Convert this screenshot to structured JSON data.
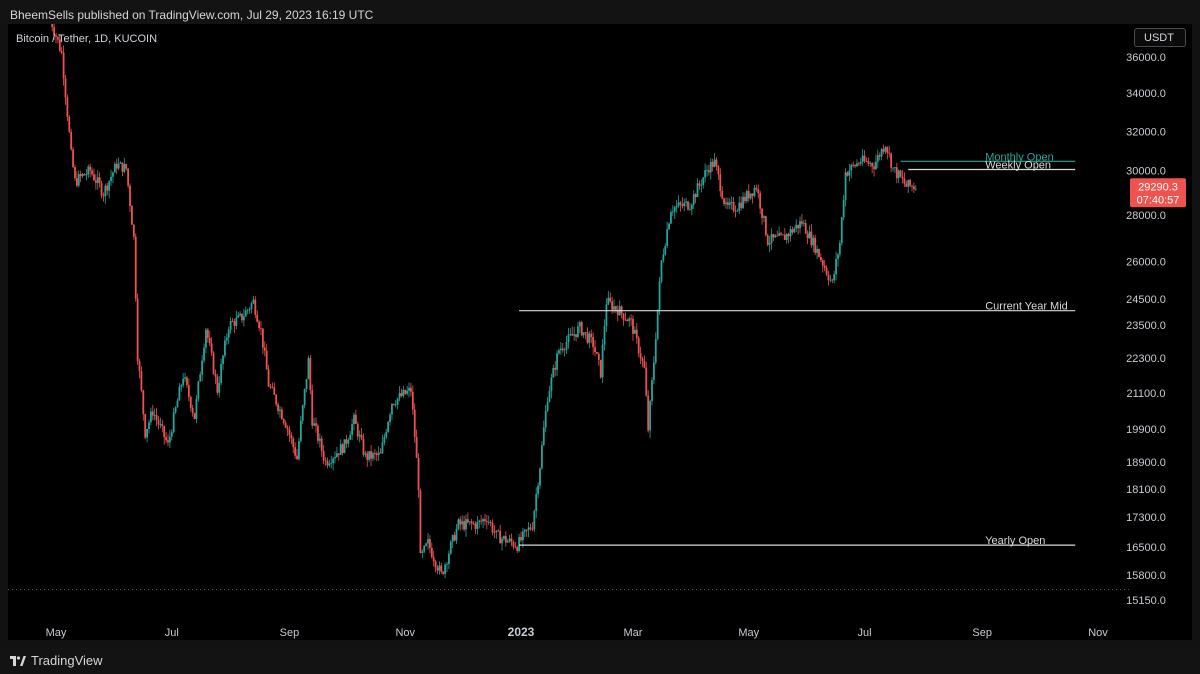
{
  "header": {
    "publisher_line": "BheemSells published on TradingView.com, Jul 29, 2023 16:19 UTC"
  },
  "symbol": {
    "title": "Bitcoin / Tether, 1D, KUCOIN"
  },
  "currency_button": "USDT",
  "footer": {
    "brand": "TradingView"
  },
  "colors": {
    "background": "#000000",
    "up": "#26a69a",
    "down": "#ef5350",
    "level_line": "#d9d9d9",
    "monthly_line": "#26a69a",
    "price_tag": "#ef5350"
  },
  "chart_data": {
    "type": "candlestick",
    "price_scale_ticks": [
      36000,
      34000,
      32000,
      30000,
      28000,
      26000,
      24500,
      23500,
      22300,
      21100,
      19900,
      18900,
      18100,
      17300,
      16500,
      15800,
      15150
    ],
    "price_scale_labels": [
      "36000.0",
      "34000.0",
      "32000.0",
      "30000.0",
      "28000.0",
      "26000.0",
      "24500.0",
      "23500.0",
      "22300.0",
      "21100.0",
      "19900.0",
      "18900.0",
      "18100.0",
      "17300.0",
      "16500.0",
      "15800.0",
      "15150.0"
    ],
    "time_axis": [
      {
        "date": "2022-05-01",
        "label": "May",
        "bold": false
      },
      {
        "date": "2022-07-01",
        "label": "Jul",
        "bold": false
      },
      {
        "date": "2022-09-01",
        "label": "Sep",
        "bold": false
      },
      {
        "date": "2022-11-01",
        "label": "Nov",
        "bold": false
      },
      {
        "date": "2023-01-01",
        "label": "2023",
        "bold": true
      },
      {
        "date": "2023-03-01",
        "label": "Mar",
        "bold": false
      },
      {
        "date": "2023-05-01",
        "label": "May",
        "bold": false
      },
      {
        "date": "2023-07-01",
        "label": "Jul",
        "bold": false
      },
      {
        "date": "2023-09-01",
        "label": "Sep",
        "bold": false
      },
      {
        "date": "2023-11-01",
        "label": "Nov",
        "bold": false
      }
    ],
    "price_path": [
      [
        "2022-04-28",
        38500
      ],
      [
        "2022-05-05",
        36200
      ],
      [
        "2022-05-10",
        30800
      ],
      [
        "2022-05-12",
        29500
      ],
      [
        "2022-05-20",
        30000
      ],
      [
        "2022-05-27",
        29000
      ],
      [
        "2022-06-03",
        30300
      ],
      [
        "2022-06-08",
        30100
      ],
      [
        "2022-06-12",
        27000
      ],
      [
        "2022-06-14",
        22400
      ],
      [
        "2022-06-18",
        19800
      ],
      [
        "2022-06-22",
        20500
      ],
      [
        "2022-06-30",
        19400
      ],
      [
        "2022-07-08",
        21700
      ],
      [
        "2022-07-14",
        20300
      ],
      [
        "2022-07-20",
        23400
      ],
      [
        "2022-07-26",
        21200
      ],
      [
        "2022-08-01",
        23500
      ],
      [
        "2022-08-08",
        23800
      ],
      [
        "2022-08-14",
        24400
      ],
      [
        "2022-08-18",
        23300
      ],
      [
        "2022-08-22",
        21400
      ],
      [
        "2022-08-31",
        20100
      ],
      [
        "2022-09-06",
        19000
      ],
      [
        "2022-09-12",
        22200
      ],
      [
        "2022-09-14",
        20200
      ],
      [
        "2022-09-21",
        18900
      ],
      [
        "2022-10-01",
        19400
      ],
      [
        "2022-10-06",
        20200
      ],
      [
        "2022-10-12",
        19050
      ],
      [
        "2022-10-20",
        19100
      ],
      [
        "2022-10-26",
        20800
      ],
      [
        "2022-11-05",
        21200
      ],
      [
        "2022-11-09",
        18200
      ],
      [
        "2022-11-10",
        16200
      ],
      [
        "2022-11-14",
        16600
      ],
      [
        "2022-11-21",
        15800
      ],
      [
        "2022-11-30",
        17100
      ],
      [
        "2022-12-10",
        17100
      ],
      [
        "2022-12-15",
        17300
      ],
      [
        "2022-12-20",
        16800
      ],
      [
        "2022-12-31",
        16550
      ],
      [
        "2023-01-08",
        17100
      ],
      [
        "2023-01-12",
        18800
      ],
      [
        "2023-01-16",
        21000
      ],
      [
        "2023-01-22",
        22600
      ],
      [
        "2023-02-02",
        23400
      ],
      [
        "2023-02-09",
        22800
      ],
      [
        "2023-02-13",
        21800
      ],
      [
        "2023-02-16",
        24400
      ],
      [
        "2023-02-22",
        24100
      ],
      [
        "2023-03-01",
        23600
      ],
      [
        "2023-03-08",
        21900
      ],
      [
        "2023-03-10",
        19900
      ],
      [
        "2023-03-13",
        22200
      ],
      [
        "2023-03-17",
        26000
      ],
      [
        "2023-03-22",
        28300
      ],
      [
        "2023-04-01",
        28500
      ],
      [
        "2023-04-11",
        30200
      ],
      [
        "2023-04-14",
        30400
      ],
      [
        "2023-04-20",
        28300
      ],
      [
        "2023-04-26",
        28400
      ],
      [
        "2023-05-06",
        29300
      ],
      [
        "2023-05-12",
        26900
      ],
      [
        "2023-05-20",
        27000
      ],
      [
        "2023-05-30",
        27700
      ],
      [
        "2023-06-05",
        26800
      ],
      [
        "2023-06-15",
        25100
      ],
      [
        "2023-06-19",
        26800
      ],
      [
        "2023-06-22",
        29900
      ],
      [
        "2023-06-30",
        30500
      ],
      [
        "2023-07-07",
        30300
      ],
      [
        "2023-07-13",
        31400
      ],
      [
        "2023-07-17",
        30100
      ],
      [
        "2023-07-24",
        29300
      ],
      [
        "2023-07-29",
        29290
      ]
    ],
    "levels": [
      {
        "label": "Monthly Open",
        "price": 30470,
        "from": "2023-07-20",
        "to": "2023-10-20",
        "color": "#26a69a"
      },
      {
        "label": "Weekly Open",
        "price": 30050,
        "from": "2023-07-24",
        "to": "2023-10-20",
        "color": "#d9d9d9"
      },
      {
        "label": "Current Year Mid",
        "price": 24050,
        "from": "2022-12-31",
        "to": "2023-10-20",
        "color": "#d9d9d9"
      },
      {
        "label": "Yearly Open",
        "price": 16550,
        "from": "2022-12-31",
        "to": "2023-10-20",
        "color": "#d9d9d9"
      }
    ],
    "last_price": {
      "value": "29290.3",
      "countdown": "07:40:57",
      "price": 29290.3
    },
    "range_low_price": 15500
  }
}
